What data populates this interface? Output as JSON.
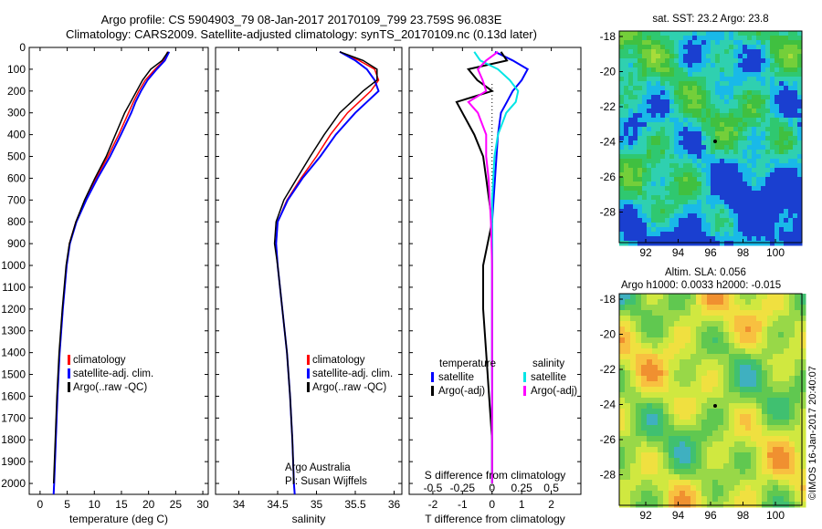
{
  "header": {
    "line1": "Argo profile: CS 5904903_79 08-Jan-2017 20170109_799 23.759S 96.083E",
    "line2": "Climatology: CARS2009. Satellite-adjusted climatology: synTS_20170109.nc (0.13d later)"
  },
  "colors": {
    "climatology": "#ff0000",
    "satellite": "#0000ff",
    "argo": "#000000",
    "sal_satellite": "#00e5e5",
    "sal_argo": "#ff00ff"
  },
  "chart_data": [
    {
      "id": "temperature",
      "type": "line",
      "xlabel": "temperature (deg C)",
      "ylabel": "",
      "xlim": [
        -2,
        31
      ],
      "ylim": [
        2050,
        0
      ],
      "xticks": [
        0,
        5,
        10,
        15,
        20,
        25,
        30
      ],
      "yticks": [
        0,
        100,
        200,
        300,
        400,
        500,
        600,
        700,
        800,
        900,
        1000,
        1100,
        1200,
        1300,
        1400,
        1500,
        1600,
        1700,
        1800,
        1900,
        2000
      ],
      "legend": [
        "climatology",
        "satellite-adj. clim.",
        "Argo(..raw -QC)"
      ],
      "series": [
        {
          "name": "climatology",
          "depth": [
            20,
            60,
            100,
            150,
            200,
            250,
            300,
            400,
            500,
            600,
            700,
            800,
            900,
            1000,
            1200,
            1400,
            1600,
            1800,
            2000,
            2050
          ],
          "values": [
            23.5,
            22.8,
            21.2,
            19.4,
            18.2,
            17.2,
            16.3,
            14.5,
            12.5,
            10.3,
            8.3,
            6.6,
            5.4,
            4.9,
            4.2,
            3.6,
            3.2,
            2.9,
            2.6,
            2.5
          ]
        },
        {
          "name": "satellite-adj. clim.",
          "depth": [
            20,
            60,
            100,
            150,
            200,
            250,
            300,
            400,
            500,
            600,
            700,
            800,
            900,
            1000,
            1200,
            1400,
            1600,
            1800,
            2000,
            2050
          ],
          "values": [
            23.8,
            23.0,
            21.5,
            19.8,
            18.6,
            17.6,
            16.8,
            14.9,
            12.9,
            10.6,
            8.5,
            6.7,
            5.5,
            4.9,
            4.2,
            3.6,
            3.2,
            2.9,
            2.6,
            2.5
          ]
        },
        {
          "name": "Argo(..raw -QC)",
          "depth": [
            20,
            60,
            100,
            150,
            200,
            250,
            300,
            400,
            500,
            600,
            700,
            800,
            900,
            1000,
            1200,
            1400,
            1600,
            1800,
            2000
          ],
          "values": [
            23.6,
            22.5,
            20.4,
            18.9,
            17.8,
            16.7,
            15.6,
            13.9,
            12.2,
            10.1,
            8.2,
            6.6,
            5.4,
            4.8,
            4.1,
            3.5,
            3.1,
            2.8,
            2.5
          ]
        }
      ]
    },
    {
      "id": "salinity",
      "type": "line",
      "xlabel": "salinity",
      "xlim": [
        33.7,
        36.1
      ],
      "ylim": [
        2050,
        0
      ],
      "xticks": [
        34,
        34.5,
        35,
        35.5,
        36
      ],
      "legend": [
        "climatology",
        "satellite-adj. clim.",
        "Argo(..raw -QC)"
      ],
      "annotation": [
        "Argo Australia",
        "PI: Susan Wijffels"
      ],
      "series": [
        {
          "name": "climatology",
          "depth": [
            20,
            60,
            100,
            150,
            200,
            250,
            300,
            400,
            500,
            600,
            700,
            800,
            900,
            1000,
            1200,
            1400,
            1600,
            1800,
            2000,
            2050
          ],
          "values": [
            35.3,
            35.55,
            35.75,
            35.8,
            35.7,
            35.55,
            35.4,
            35.18,
            35.0,
            34.8,
            34.62,
            34.5,
            34.48,
            34.5,
            34.56,
            34.62,
            34.66,
            34.69,
            34.71,
            34.72
          ]
        },
        {
          "name": "satellite-adj. clim.",
          "depth": [
            20,
            60,
            100,
            150,
            200,
            250,
            300,
            400,
            500,
            600,
            700,
            800,
            900,
            1000,
            1200,
            1400,
            1600,
            1800,
            2000,
            2050
          ],
          "values": [
            35.3,
            35.5,
            35.65,
            35.75,
            35.8,
            35.65,
            35.5,
            35.25,
            35.05,
            34.82,
            34.63,
            34.5,
            34.48,
            34.5,
            34.56,
            34.62,
            34.66,
            34.69,
            34.71,
            34.72
          ]
        },
        {
          "name": "Argo(..raw -QC)",
          "depth": [
            20,
            60,
            100,
            150,
            200,
            250,
            300,
            400,
            500,
            600,
            700,
            800,
            900,
            1000,
            1200,
            1400,
            1600,
            1800,
            2000
          ],
          "values": [
            35.3,
            35.6,
            35.78,
            35.78,
            35.6,
            35.45,
            35.3,
            35.1,
            34.92,
            34.75,
            34.58,
            34.48,
            34.46,
            34.5,
            34.56,
            34.62,
            34.66,
            34.69,
            34.71
          ]
        }
      ]
    },
    {
      "id": "difference",
      "type": "line",
      "xlabel": "T difference from climatology",
      "xlabel_top": "S difference from climatology",
      "xlim": [
        -2.8,
        3.0
      ],
      "ylim": [
        2050,
        0
      ],
      "xticks": [
        -2,
        -1,
        0,
        1,
        2
      ],
      "xticks_top": [
        "-0.5",
        "-0.25",
        "0",
        "0.25",
        "0.5"
      ],
      "legend_temperature_title": "temperature",
      "legend_salinity_title": "salinity",
      "legend": [
        "satellite",
        "Argo(-adj)",
        "satellite",
        "Argo(-adj)"
      ],
      "series": [
        {
          "name": "T satellite",
          "depth": [
            20,
            60,
            100,
            150,
            200,
            250,
            300,
            400,
            500,
            600,
            700,
            800,
            1000,
            1200,
            1400,
            1600,
            1800,
            2000
          ],
          "values": [
            0.1,
            0.7,
            1.2,
            1.0,
            0.7,
            0.5,
            0.3,
            0.2,
            0.15,
            0.1,
            0.05,
            0.0,
            0.0,
            0.0,
            0.0,
            0.0,
            0.0,
            0.0
          ]
        },
        {
          "name": "T Argo(-adj)",
          "depth": [
            20,
            60,
            100,
            150,
            200,
            250,
            300,
            400,
            500,
            600,
            700,
            800,
            1000,
            1200,
            1400,
            1600,
            1800,
            2000
          ],
          "values": [
            0.3,
            0.5,
            -0.8,
            -0.5,
            0.0,
            -1.2,
            -1.0,
            -0.6,
            -0.3,
            -0.2,
            -0.1,
            0.0,
            -0.3,
            -0.3,
            -0.2,
            -0.1,
            0.0,
            0.0
          ]
        },
        {
          "name": "S satellite",
          "depth": [
            20,
            60,
            100,
            150,
            200,
            250,
            300,
            400,
            500,
            600,
            700,
            800,
            1000,
            1200,
            1400,
            1600,
            1800,
            2000
          ],
          "values": [
            -0.15,
            -0.1,
            0.05,
            0.15,
            0.22,
            0.2,
            0.12,
            0.05,
            0.02,
            0.01,
            0.0,
            0.0,
            0.0,
            0.0,
            0.0,
            0.0,
            0.0,
            0.0
          ]
        },
        {
          "name": "S Argo(-adj)",
          "depth": [
            20,
            60,
            100,
            150,
            200,
            250,
            300,
            400,
            500,
            600,
            700,
            800,
            1000,
            1200,
            1400,
            1600,
            1800,
            2000
          ],
          "values": [
            0.05,
            -0.05,
            -0.12,
            -0.08,
            -0.05,
            -0.2,
            -0.12,
            -0.05,
            -0.05,
            -0.03,
            -0.02,
            -0.01,
            0.0,
            0.0,
            0.0,
            0.0,
            0.0,
            0.0
          ]
        }
      ]
    },
    {
      "id": "sst_map",
      "type": "heatmap",
      "title": "sat. SST: 23.2  Argo: 23.8",
      "xticks": [
        "92",
        "94",
        "96",
        "98",
        "100"
      ],
      "yticks": [
        "-18",
        "-20",
        "-22",
        "-24",
        "-26",
        "-28"
      ]
    },
    {
      "id": "sla_map",
      "type": "heatmap",
      "title_line1": "Altim. SLA: 0.056",
      "title_line2": "Argo h1000: 0.0033 h2000: -0.015",
      "xticks": [
        "92",
        "94",
        "96",
        "98",
        "100"
      ],
      "yticks": [
        "-18",
        "-20",
        "-22",
        "-24",
        "-26",
        "-28"
      ]
    }
  ],
  "footer": {
    "credit": "©IMOS 16-Jan-2017 20:40:07"
  }
}
